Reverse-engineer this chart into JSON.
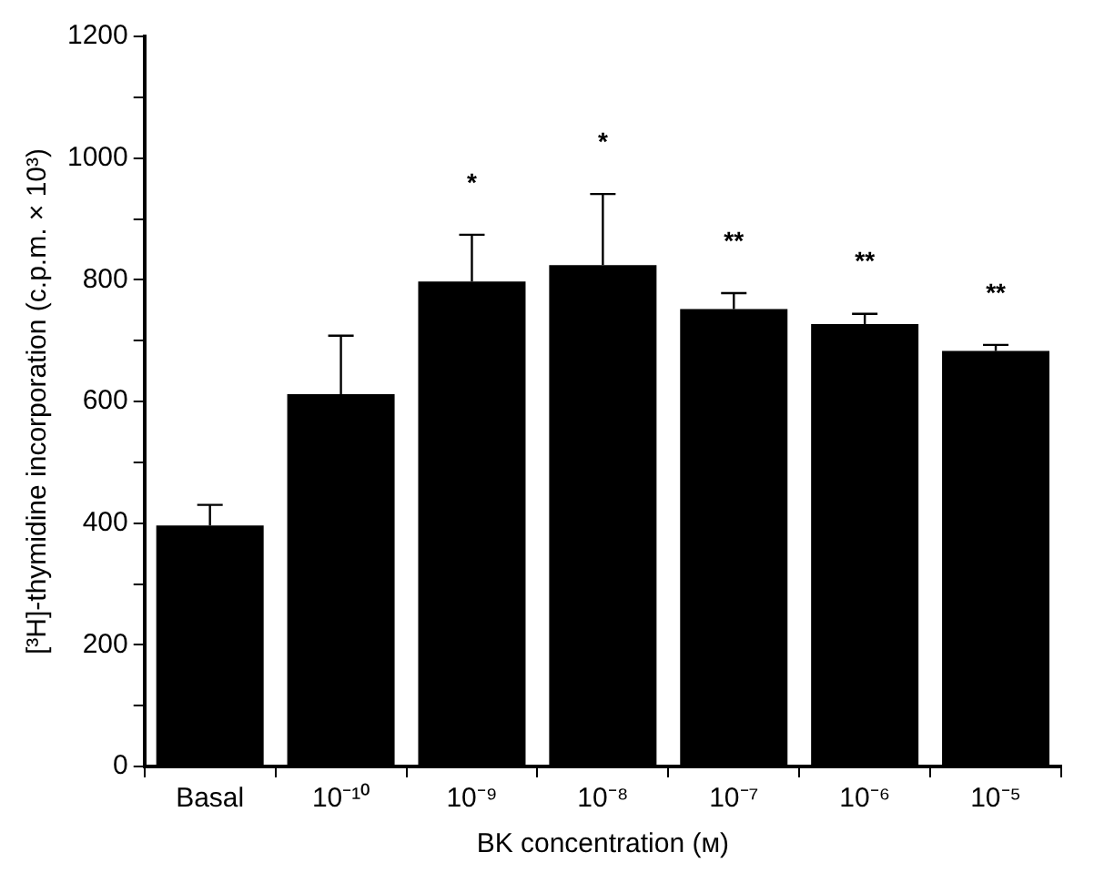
{
  "chart_data": {
    "type": "bar",
    "xlabel": "BK concentration (ᴍ)",
    "ylabel": "[³H]-thymidine incorporation (c.p.m. × 10³)",
    "categories": [
      "Basal",
      "10⁻¹⁰",
      "10⁻⁹",
      "10⁻⁸",
      "10⁻⁷",
      "10⁻⁶",
      "10⁻⁵"
    ],
    "values": [
      396,
      612,
      797,
      824,
      752,
      727,
      683
    ],
    "color": "#000000",
    "errors": [
      [
        396,
        430
      ],
      [
        612,
        708
      ],
      [
        797,
        874
      ],
      [
        824,
        941
      ],
      [
        752,
        778
      ],
      [
        727,
        744
      ],
      [
        683,
        693
      ]
    ],
    "ylim": [
      0,
      1200
    ],
    "yticks": [
      0,
      {
        "value": 100,
        "label": null
      },
      200,
      {
        "value": 300,
        "label": null
      },
      400,
      {
        "value": 500,
        "label": null
      },
      600,
      {
        "value": 700,
        "label": null
      },
      800,
      {
        "value": 900,
        "label": null
      },
      1000,
      {
        "value": 1100,
        "label": null
      },
      1200
    ],
    "grid": false,
    "legend": false,
    "annotations": [
      "*",
      "*",
      "**",
      "**",
      "**"
    ]
  }
}
